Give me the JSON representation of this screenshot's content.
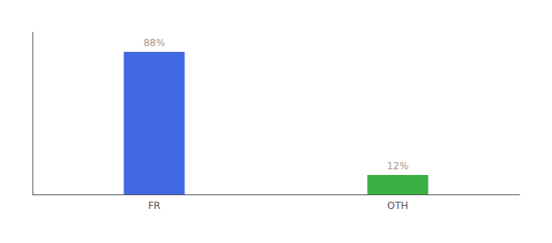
{
  "chart_data": {
    "type": "bar",
    "categories": [
      "FR",
      "OTH"
    ],
    "values": [
      88,
      12
    ],
    "colors": [
      "#4169e1",
      "#3cb043"
    ],
    "ylim": [
      0,
      100
    ],
    "data_labels": true,
    "value_labels": [
      "88%",
      "12%"
    ],
    "tick_labels": "x",
    "grid": false
  }
}
